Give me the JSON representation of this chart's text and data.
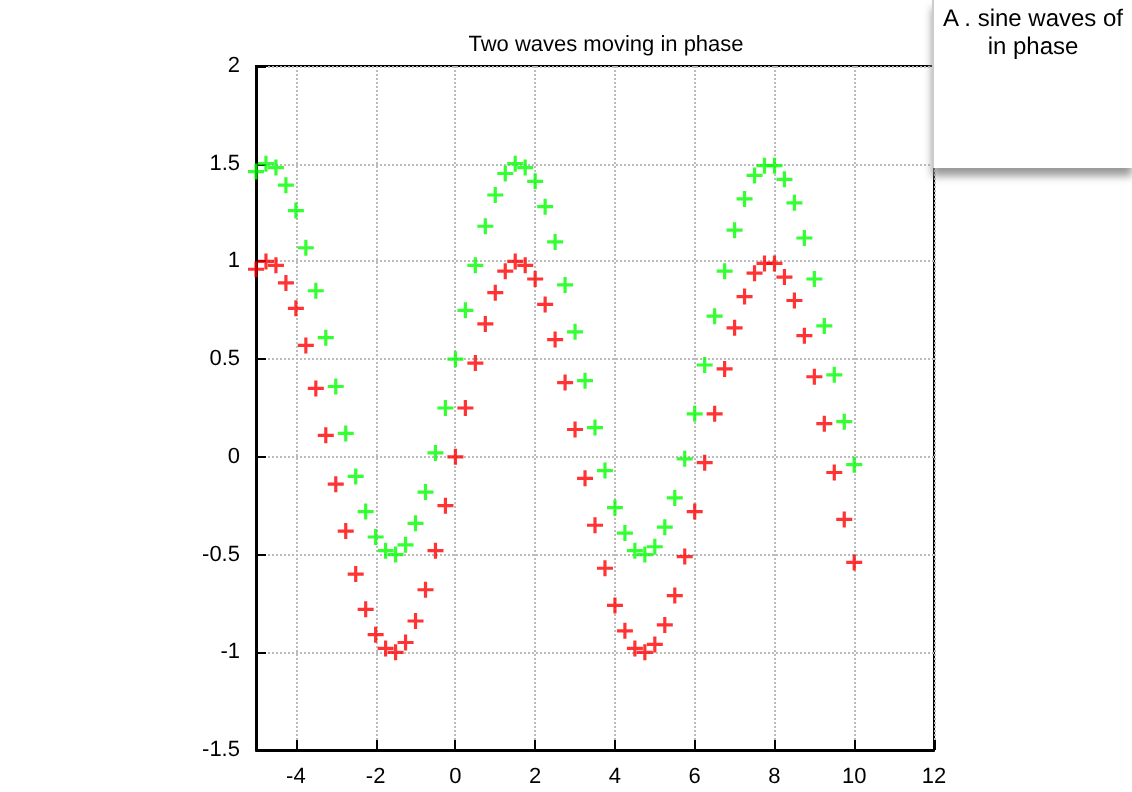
{
  "chart_data": {
    "type": "scatter",
    "title": "Two waves moving in phase",
    "annotations": [
      "A . sine waves of in phase"
    ],
    "x": [
      -5,
      -4.75,
      -4.5,
      -4.25,
      -4,
      -3.75,
      -3.5,
      -3.25,
      -3,
      -2.75,
      -2.5,
      -2.25,
      -2,
      -1.75,
      -1.5,
      -1.25,
      -1,
      -0.75,
      -0.5,
      -0.25,
      0,
      0.25,
      0.5,
      0.75,
      1,
      1.25,
      1.5,
      1.75,
      2,
      2.25,
      2.5,
      2.75,
      3,
      3.25,
      3.5,
      3.75,
      4,
      4.25,
      4.5,
      4.75,
      5,
      5.25,
      5.5,
      5.75,
      6,
      6.25,
      6.5,
      6.75,
      7,
      7.25,
      7.5,
      7.75,
      8,
      8.25,
      8.5,
      8.75,
      9,
      9.25,
      9.5,
      9.75,
      10
    ],
    "series": [
      {
        "color": "#ff0000",
        "values": [
          0.96,
          1.0,
          0.98,
          0.89,
          0.76,
          0.57,
          0.35,
          0.11,
          -0.14,
          -0.38,
          -0.6,
          -0.78,
          -0.91,
          -0.98,
          -1.0,
          -0.95,
          -0.84,
          -0.68,
          -0.48,
          -0.25,
          0,
          0.25,
          0.48,
          0.68,
          0.84,
          0.95,
          1.0,
          0.98,
          0.91,
          0.78,
          0.6,
          0.38,
          0.14,
          -0.11,
          -0.35,
          -0.57,
          -0.76,
          -0.89,
          -0.98,
          -1.0,
          -0.96,
          -0.86,
          -0.71,
          -0.51,
          -0.28,
          -0.03,
          0.22,
          0.45,
          0.66,
          0.82,
          0.94,
          0.99,
          0.99,
          0.92,
          0.8,
          0.62,
          0.41,
          0.17,
          -0.08,
          -0.32,
          -0.54
        ]
      },
      {
        "color": "#00ff00",
        "values": [
          1.46,
          1.5,
          1.48,
          1.39,
          1.26,
          1.07,
          0.85,
          0.61,
          0.36,
          0.12,
          -0.1,
          -0.28,
          -0.41,
          -0.48,
          -0.5,
          -0.45,
          -0.34,
          -0.18,
          0.02,
          0.25,
          0.5,
          0.75,
          0.98,
          1.18,
          1.34,
          1.45,
          1.5,
          1.48,
          1.41,
          1.28,
          1.1,
          0.88,
          0.64,
          0.39,
          0.15,
          -0.07,
          -0.26,
          -0.39,
          -0.48,
          -0.5,
          -0.46,
          -0.36,
          -0.21,
          -0.01,
          0.22,
          0.47,
          0.72,
          0.95,
          1.16,
          1.32,
          1.44,
          1.49,
          1.49,
          1.42,
          1.3,
          1.12,
          0.91,
          0.67,
          0.42,
          0.18,
          -0.04
        ]
      }
    ],
    "xlim": [
      -5,
      12
    ],
    "xticks": [
      -4,
      -2,
      0,
      2,
      4,
      6,
      8,
      10,
      12
    ],
    "ylim": [
      -1.5,
      2
    ],
    "yticks": [
      -1.5,
      -1,
      -0.5,
      0,
      0.5,
      1,
      1.5,
      2
    ],
    "grid": true,
    "marker": "cross"
  }
}
